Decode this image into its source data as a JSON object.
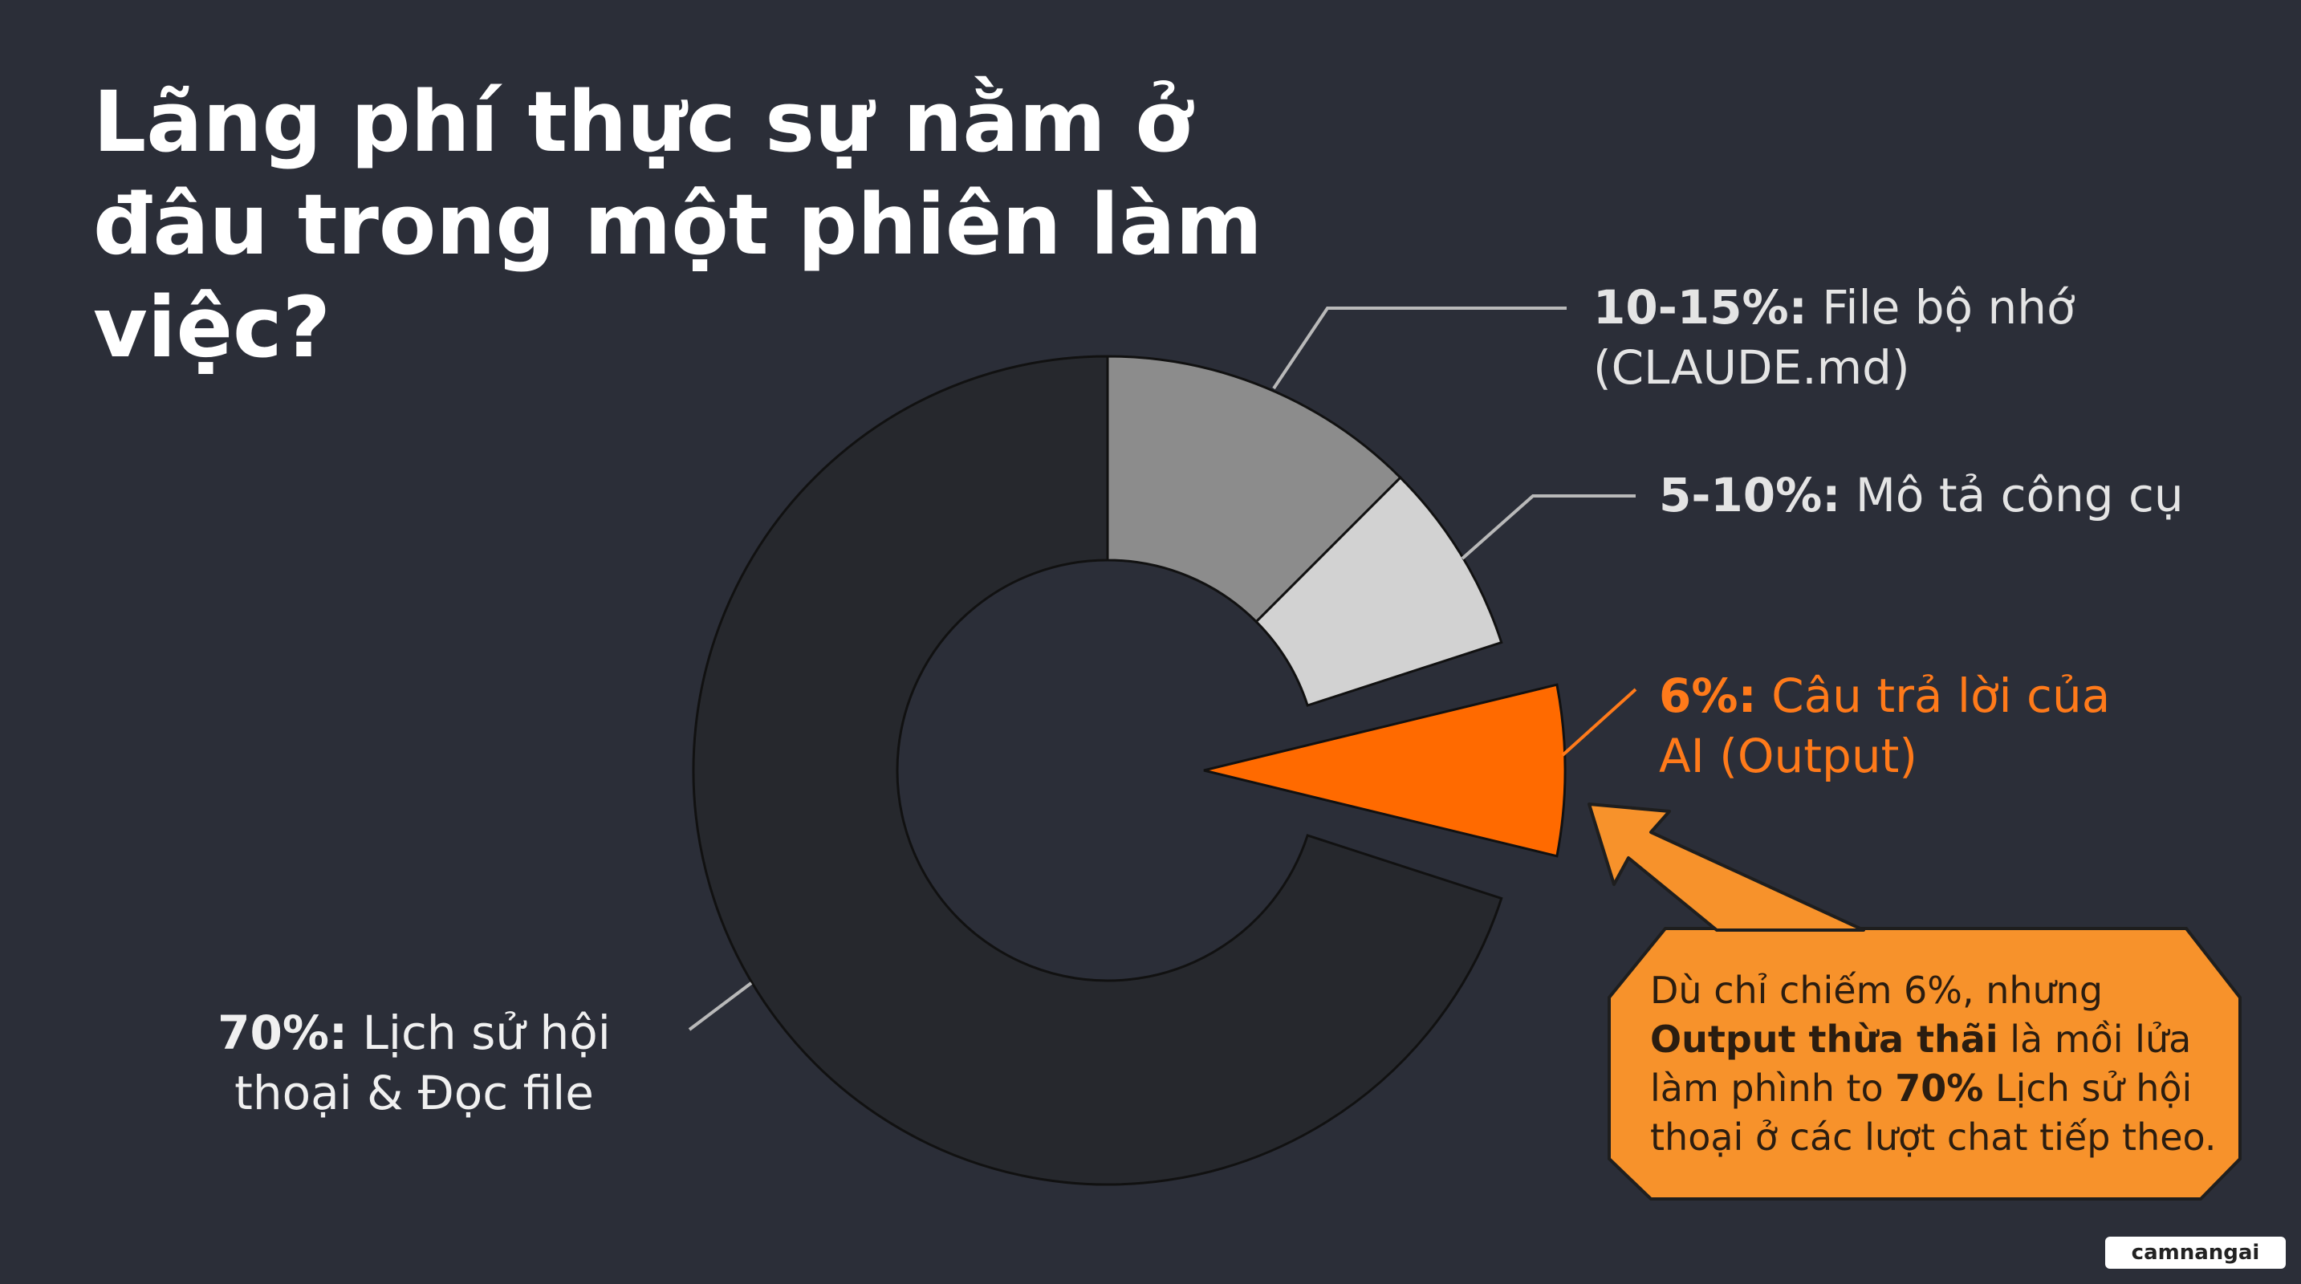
{
  "chart_data": {
    "type": "donut",
    "title": "Lãng phí thực sự nằm ở đâu trong một phiên làm việc?",
    "categories": [
      "File bộ nhớ (CLAUDE.md)",
      "Mô tả công cụ",
      "Câu trả lời của AI (Output)",
      "Lịch sử hội thoại & Đọc file"
    ],
    "values": [
      12.5,
      7.5,
      6,
      70
    ],
    "value_labels": [
      "10-15%:",
      "5-10%:",
      "6%:",
      "70%:"
    ],
    "colors": [
      "#8c8c8c",
      "#d2d2d2",
      "#ff6a00",
      "#26282d"
    ],
    "exploded": [
      false,
      false,
      true,
      false
    ]
  },
  "callout": {
    "parts": [
      {
        "text": "Dù chỉ chiếm 6%, nhưng ",
        "bold": false
      },
      {
        "text": "Output thừa thãi",
        "bold": true
      },
      {
        "text": " là mồi lửa làm phình to ",
        "bold": false
      },
      {
        "text": "70%",
        "bold": true
      },
      {
        "text": " Lịch sử hội thoại ở các lượt chat tiếp theo.",
        "bold": false
      }
    ]
  },
  "watermark": "camnangai"
}
